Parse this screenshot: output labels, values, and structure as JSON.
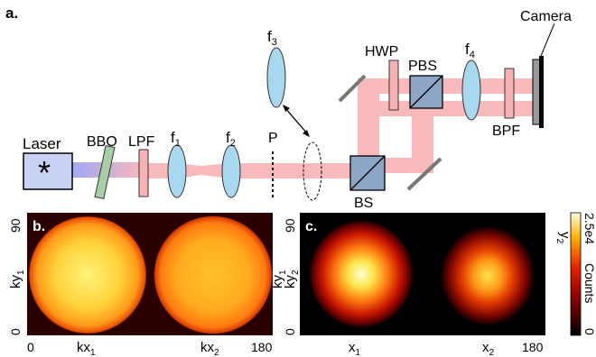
{
  "figure": {
    "panel_a": {
      "tag": "a.",
      "labels": {
        "laser": "Laser",
        "bbo": "BBO",
        "lpf": "LPF",
        "f1": "f",
        "f1_sub": "1",
        "f2": "f",
        "f2_sub": "2",
        "p": "P",
        "f3": "f",
        "f3_sub": "3",
        "bs": "BS",
        "hwp": "HWP",
        "pbs": "PBS",
        "f4": "f",
        "f4_sub": "4",
        "bpf": "BPF",
        "camera": "Camera"
      },
      "colors": {
        "pump_beam": "#a3a6f5",
        "downconverted_beam": "#f7b9b9",
        "lens": "#a8d8f0",
        "crystal": "#a7cfa7",
        "filter": "#f7b3b3",
        "beamsplitter": "#8fa7c7"
      }
    },
    "panel_b": {
      "tag": "b.",
      "y_label_main": "ky",
      "y_label_sub": "1",
      "y_tick_top": "90",
      "y_tick_bottom": "0",
      "x_tick_left": "0",
      "x_tick_right": "180",
      "x_label_1": "kx",
      "x_label_1_sub": "1",
      "x_label_2": "kx",
      "x_label_2_sub": "2"
    },
    "panel_c": {
      "tag": "c.",
      "y_label_main": "ky",
      "y_label_sub": "1",
      "y_label_main_2": "ky",
      "y_label_sub_2": "2",
      "y_tick_top": "90",
      "y_tick_bottom": "0",
      "x_tick_right": "180",
      "x_label_1": "x",
      "x_label_1_sub": "1",
      "x_label_2": "x",
      "x_label_2_sub": "2",
      "right_label": "y",
      "right_label_sub": "2"
    },
    "colorbar": {
      "top": "2.5e4",
      "label": "Counts",
      "bottom": "0"
    }
  }
}
